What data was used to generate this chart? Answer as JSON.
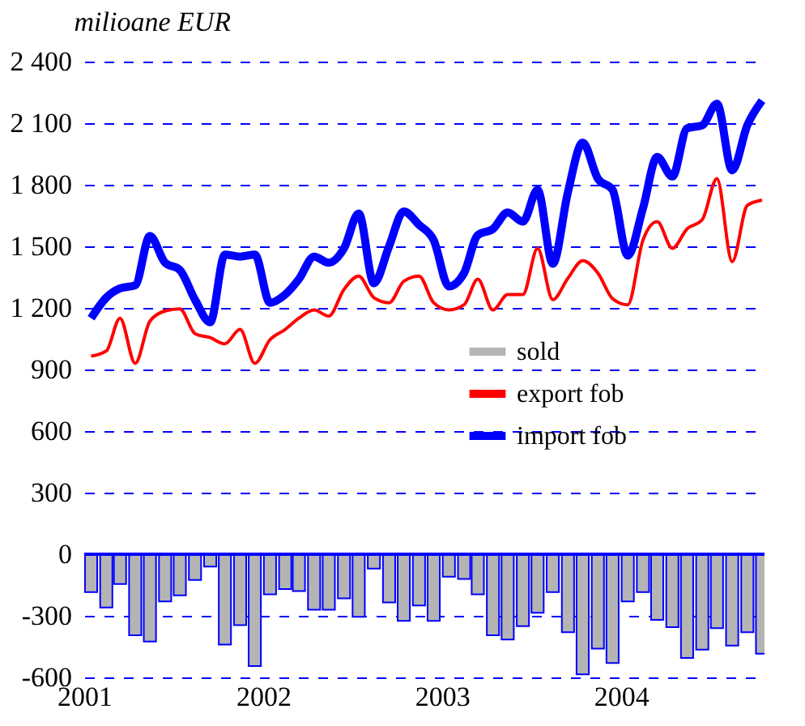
{
  "chart_data": {
    "type": "line",
    "ylabel": "milioane EUR",
    "x": [
      "2001-01-15",
      "2001-02-15",
      "2001-03-15",
      "2001-04-15",
      "2001-05-15",
      "2001-06-15",
      "2001-07-15",
      "2001-08-15",
      "2001-09-15",
      "2001-10-15",
      "2001-11-15",
      "2001-12-15",
      "2002-01-15",
      "2002-02-15",
      "2002-03-15",
      "2002-04-15",
      "2002-05-15",
      "2002-06-15",
      "2002-07-15",
      "2002-08-15",
      "2002-09-15",
      "2002-10-15",
      "2002-11-15",
      "2002-12-15",
      "2003-01-15",
      "2003-02-15",
      "2003-03-15",
      "2003-04-15",
      "2003-05-15",
      "2003-06-15",
      "2003-07-15",
      "2003-08-15",
      "2003-09-15",
      "2003-10-15",
      "2003-11-15",
      "2003-12-15",
      "2004-01-15",
      "2004-02-15",
      "2004-03-15",
      "2004-04-15",
      "2004-05-15",
      "2004-06-15",
      "2004-07-15",
      "2004-08-15",
      "2004-09-15",
      "2004-10-15"
    ],
    "series": [
      {
        "name": "sold",
        "type": "bar",
        "color": "#b4b4b4",
        "values": [
          -185,
          -260,
          -145,
          -395,
          -425,
          -230,
          -200,
          -125,
          -60,
          -440,
          -345,
          -545,
          -195,
          -170,
          -180,
          -270,
          -270,
          -215,
          -305,
          -70,
          -235,
          -325,
          -250,
          -325,
          -110,
          -120,
          -195,
          -395,
          -415,
          -350,
          -285,
          -185,
          -380,
          -585,
          -460,
          -530,
          -230,
          -185,
          -320,
          -355,
          -505,
          -465,
          -360,
          -445,
          -380,
          -485
        ]
      },
      {
        "name": "export fob",
        "color": "#ff0000",
        "values": [
          965,
          990,
          1150,
          930,
          1135,
          1185,
          1195,
          1075,
          1055,
          1025,
          1095,
          930,
          1045,
          1095,
          1150,
          1190,
          1160,
          1290,
          1355,
          1250,
          1225,
          1330,
          1355,
          1225,
          1190,
          1215,
          1340,
          1190,
          1265,
          1265,
          1490,
          1240,
          1345,
          1430,
          1370,
          1245,
          1215,
          1530,
          1620,
          1490,
          1585,
          1630,
          1830,
          1425,
          1700,
          1725
        ]
      },
      {
        "name": "import fob",
        "color": "#0000ff",
        "values": [
          1150,
          1250,
          1295,
          1310,
          1550,
          1420,
          1385,
          1240,
          1130,
          1460,
          1450,
          1460,
          1225,
          1265,
          1340,
          1450,
          1420,
          1490,
          1660,
          1320,
          1500,
          1670,
          1605,
          1530,
          1305,
          1370,
          1555,
          1585,
          1665,
          1620,
          1775,
          1415,
          1765,
          2005,
          1830,
          1775,
          1455,
          1685,
          1935,
          1840,
          2075,
          2090,
          2195,
          1870,
          2090,
          2210
        ]
      }
    ],
    "xlim": [
      "2001-01-01",
      "2004-10-20"
    ],
    "xticks": [
      {
        "value": "2001-01-01",
        "label": "2001"
      },
      {
        "value": "2002-01-01",
        "label": "2002"
      },
      {
        "value": "2003-01-01",
        "label": "2003"
      },
      {
        "value": "2004-01-01",
        "label": "2004"
      }
    ],
    "ylim": [
      -600,
      2400
    ],
    "yticks": [
      {
        "value": -600,
        "label": "-600"
      },
      {
        "value": -300,
        "label": "-300"
      },
      0,
      300,
      600,
      900,
      {
        "value": 1200,
        "label": "1 200"
      },
      {
        "value": 1500,
        "label": "1 500"
      },
      {
        "value": 1800,
        "label": "1 800"
      },
      {
        "value": 2100,
        "label": "2 100"
      },
      {
        "value": 2400,
        "label": "2 400"
      }
    ],
    "ref_lines": [
      {
        "axis": "y",
        "value": 0,
        "color": "#0000ff"
      }
    ],
    "grid": "y",
    "legend": "right",
    "line_style": "solid",
    "marker": "none"
  }
}
